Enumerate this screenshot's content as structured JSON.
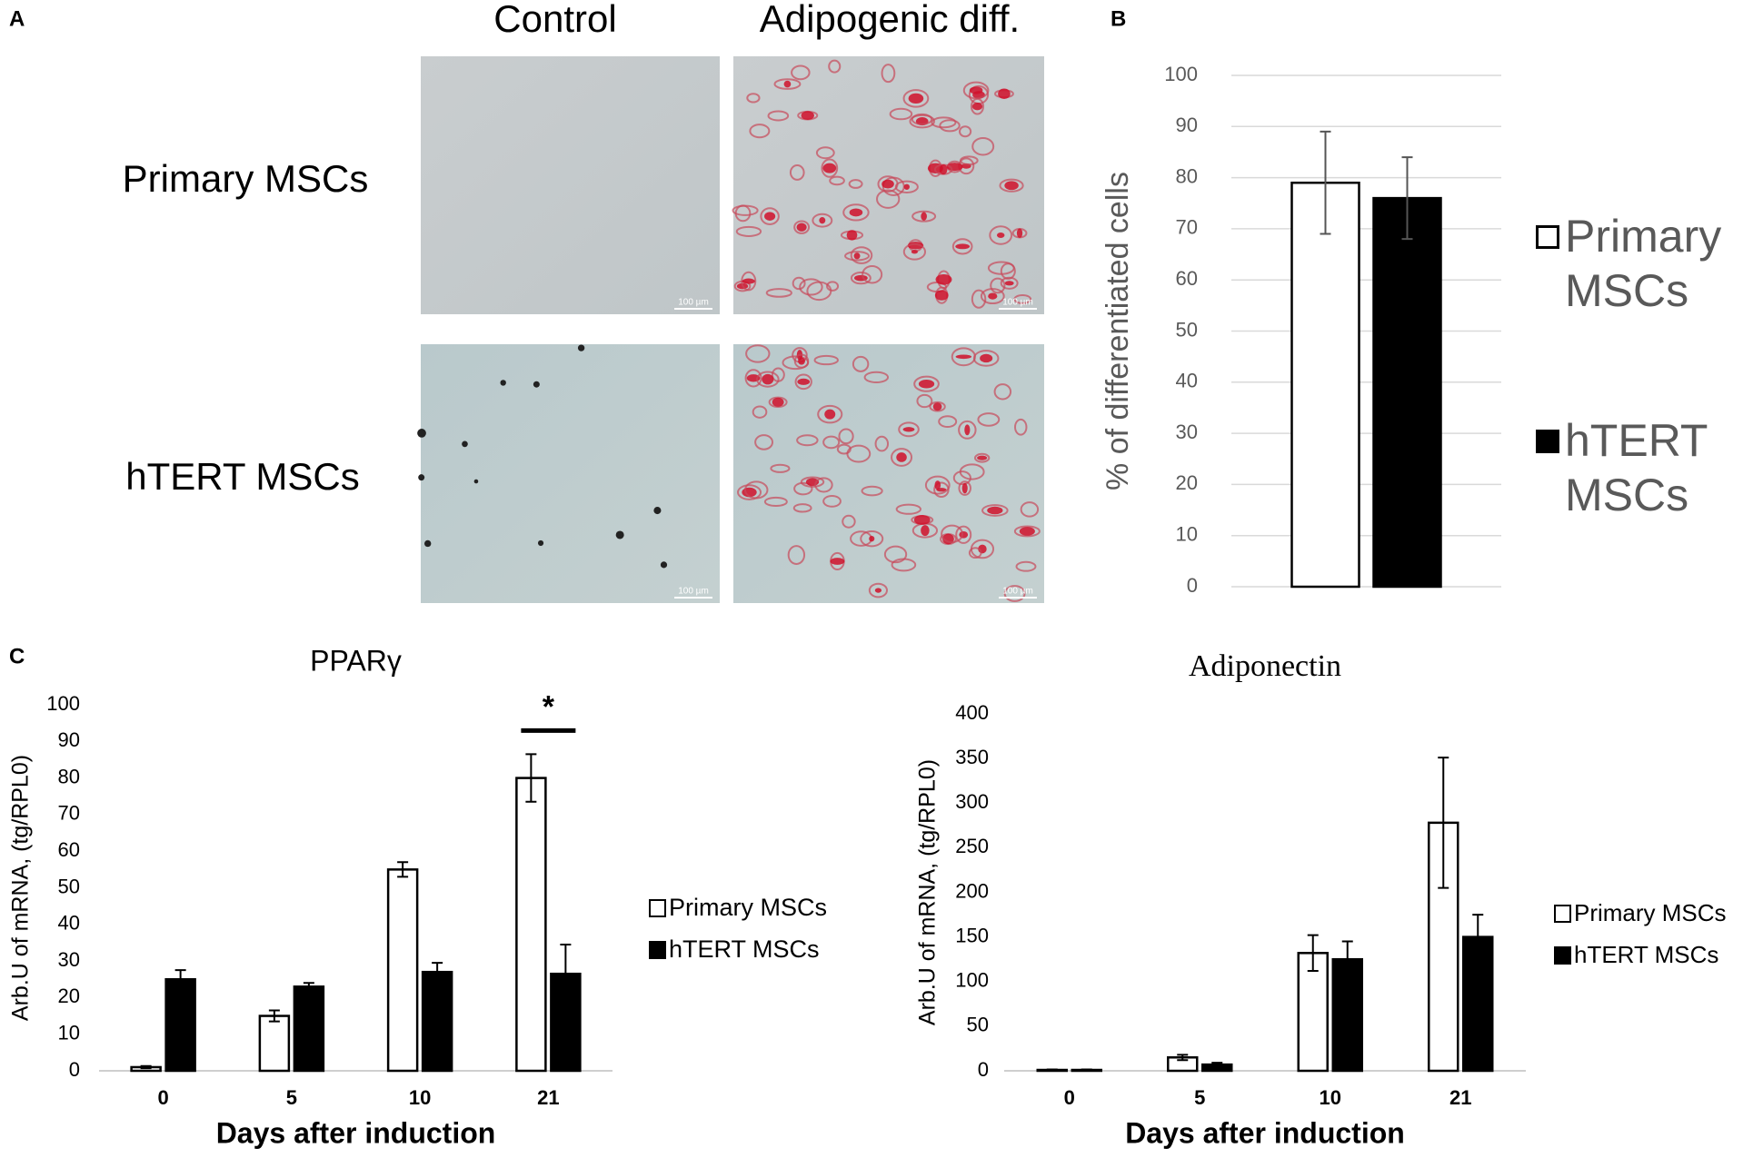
{
  "panel_labels": [
    "A",
    "B",
    "C"
  ],
  "panel_a": {
    "columns": [
      "Control",
      "Adipogenic diff."
    ],
    "rows": [
      "Primary MSCs",
      "hTERT MSCs"
    ],
    "scale_bar": "100 µm"
  },
  "chart_data": [
    {
      "type": "bar",
      "ylabel": "% of differentiated cells",
      "categories": [
        null
      ],
      "series": [
        {
          "name": "Primary MSCs",
          "color": "#ffffff",
          "values": [
            79
          ],
          "errors": [
            10
          ]
        },
        {
          "name": "hTERT MSCs",
          "color": "#000000",
          "values": [
            76
          ],
          "errors": [
            8
          ]
        }
      ],
      "ylim": [
        0,
        100
      ],
      "yticks": [
        0,
        10,
        20,
        30,
        40,
        50,
        60,
        70,
        80,
        90,
        100
      ],
      "grid": true,
      "legend": "right"
    },
    {
      "type": "bar",
      "title": "PPARγ",
      "xlabel": "Days after induction",
      "ylabel": "Arb.U of mRNA, (tg/RPL0)",
      "categories": [
        "0",
        "5",
        "10",
        "21"
      ],
      "series": [
        {
          "name": "Primary MSCs",
          "color": "#ffffff",
          "values": [
            1,
            15,
            55,
            80
          ],
          "errors": [
            0.3,
            1.5,
            2,
            6.5
          ]
        },
        {
          "name": "hTERT MSCs",
          "color": "#000000",
          "values": [
            25,
            23,
            27,
            26.5
          ],
          "errors": [
            2.5,
            1,
            2.5,
            8
          ]
        }
      ],
      "ylim": [
        0,
        100
      ],
      "yticks": [
        0,
        10,
        20,
        30,
        40,
        50,
        60,
        70,
        80,
        90,
        100
      ],
      "grid": false,
      "legend": "right",
      "annotation": "*"
    },
    {
      "type": "bar",
      "title": "Adiponectin",
      "xlabel": "Days after induction",
      "ylabel": "Arb.U of mRNA, (tg/RPL0)",
      "categories": [
        "0",
        "5",
        "10",
        "21"
      ],
      "series": [
        {
          "name": "Primary MSCs",
          "color": "#ffffff",
          "values": [
            1,
            15,
            132,
            278
          ],
          "errors": [
            0.5,
            3,
            20,
            73
          ]
        },
        {
          "name": "hTERT MSCs",
          "color": "#000000",
          "values": [
            1,
            7,
            125,
            150
          ],
          "errors": [
            0.5,
            2,
            20,
            25
          ]
        }
      ],
      "ylim": [
        0,
        400
      ],
      "yticks": [
        0,
        50,
        100,
        150,
        200,
        250,
        300,
        350,
        400
      ],
      "grid": false,
      "legend": "right"
    }
  ]
}
